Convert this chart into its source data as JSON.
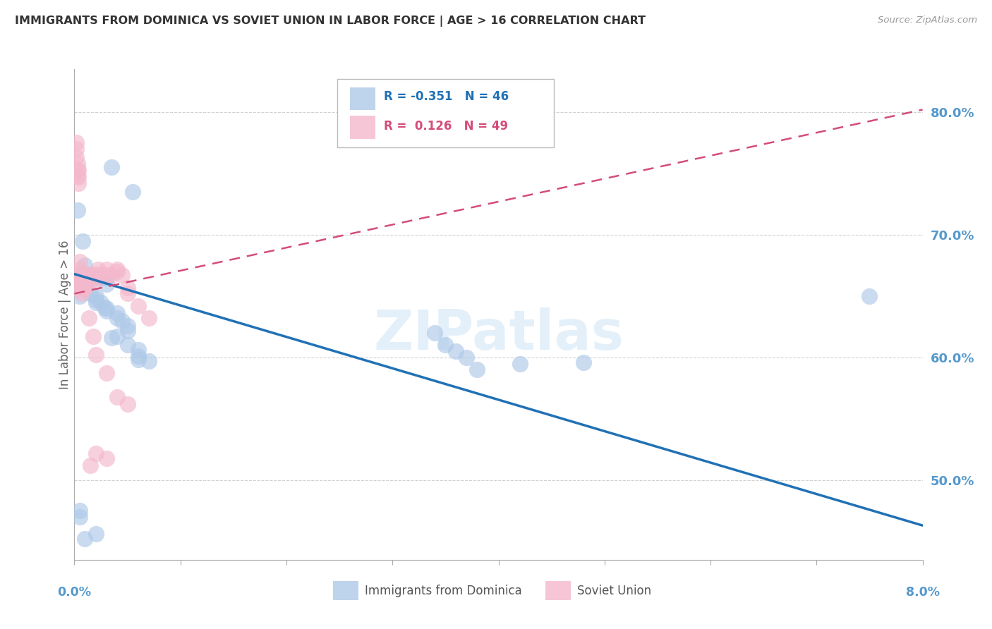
{
  "title": "IMMIGRANTS FROM DOMINICA VS SOVIET UNION IN LABOR FORCE | AGE > 16 CORRELATION CHART",
  "source": "Source: ZipAtlas.com",
  "ylabel": "In Labor Force | Age > 16",
  "legend_blue_r": "R = -0.351",
  "legend_blue_n": "N = 46",
  "legend_pink_r": "R =  0.126",
  "legend_pink_n": "N = 49",
  "legend_label_blue": "Immigrants from Dominica",
  "legend_label_pink": "Soviet Union",
  "x_min": 0.0,
  "x_max": 0.08,
  "y_min": 0.435,
  "y_max": 0.835,
  "yticks": [
    0.5,
    0.6,
    0.7,
    0.8
  ],
  "ytick_labels": [
    "50.0%",
    "60.0%",
    "70.0%",
    "80.0%"
  ],
  "blue_color": "#aec9e8",
  "pink_color": "#f4b8cc",
  "blue_line_color": "#2171b5",
  "pink_line_color": "#d44c7a",
  "grid_color": "#cccccc",
  "title_color": "#333333",
  "axis_label_color": "#5599cc",
  "watermark": "ZIPatlas",
  "blue_scatter_x": [
    0.0035,
    0.0055,
    0.0008,
    0.001,
    0.001,
    0.0005,
    0.001,
    0.0015,
    0.002,
    0.0025,
    0.003,
    0.003,
    0.0015,
    0.002,
    0.002,
    0.002,
    0.0025,
    0.0028,
    0.003,
    0.003,
    0.004,
    0.004,
    0.0045,
    0.005,
    0.005,
    0.004,
    0.0035,
    0.005,
    0.006,
    0.006,
    0.006,
    0.007,
    0.034,
    0.035,
    0.036,
    0.037,
    0.038,
    0.0005,
    0.0005,
    0.001,
    0.002,
    0.0005,
    0.0003,
    0.042,
    0.048,
    0.075
  ],
  "blue_scatter_y": [
    0.755,
    0.735,
    0.695,
    0.675,
    0.668,
    0.667,
    0.665,
    0.665,
    0.665,
    0.665,
    0.665,
    0.66,
    0.652,
    0.65,
    0.647,
    0.645,
    0.645,
    0.641,
    0.64,
    0.638,
    0.636,
    0.632,
    0.63,
    0.626,
    0.622,
    0.617,
    0.616,
    0.61,
    0.606,
    0.601,
    0.598,
    0.597,
    0.62,
    0.61,
    0.605,
    0.6,
    0.59,
    0.475,
    0.47,
    0.452,
    0.456,
    0.65,
    0.72,
    0.595,
    0.596,
    0.65
  ],
  "pink_scatter_x": [
    0.00015,
    0.00015,
    0.0002,
    0.0003,
    0.0003,
    0.0003,
    0.0004,
    0.00035,
    0.0004,
    0.0005,
    0.0005,
    0.00055,
    0.0005,
    0.0006,
    0.0006,
    0.0007,
    0.0007,
    0.0008,
    0.0008,
    0.0009,
    0.001,
    0.001,
    0.0012,
    0.0012,
    0.0015,
    0.0015,
    0.002,
    0.002,
    0.0022,
    0.0025,
    0.003,
    0.003,
    0.0035,
    0.004,
    0.004,
    0.0045,
    0.005,
    0.005,
    0.006,
    0.007,
    0.0014,
    0.0018,
    0.002,
    0.003,
    0.004,
    0.005,
    0.0015,
    0.002,
    0.003
  ],
  "pink_scatter_y": [
    0.775,
    0.77,
    0.763,
    0.758,
    0.753,
    0.748,
    0.753,
    0.747,
    0.742,
    0.678,
    0.672,
    0.667,
    0.663,
    0.66,
    0.655,
    0.657,
    0.652,
    0.667,
    0.662,
    0.657,
    0.663,
    0.657,
    0.668,
    0.663,
    0.668,
    0.663,
    0.668,
    0.662,
    0.672,
    0.668,
    0.672,
    0.667,
    0.667,
    0.672,
    0.67,
    0.667,
    0.657,
    0.652,
    0.642,
    0.632,
    0.632,
    0.617,
    0.602,
    0.587,
    0.568,
    0.562,
    0.512,
    0.522,
    0.518
  ],
  "blue_trend_x": [
    0.0,
    0.08
  ],
  "blue_trend_y": [
    0.668,
    0.463
  ],
  "pink_trend_x": [
    0.0,
    0.08
  ],
  "pink_trend_y": [
    0.652,
    0.802
  ]
}
